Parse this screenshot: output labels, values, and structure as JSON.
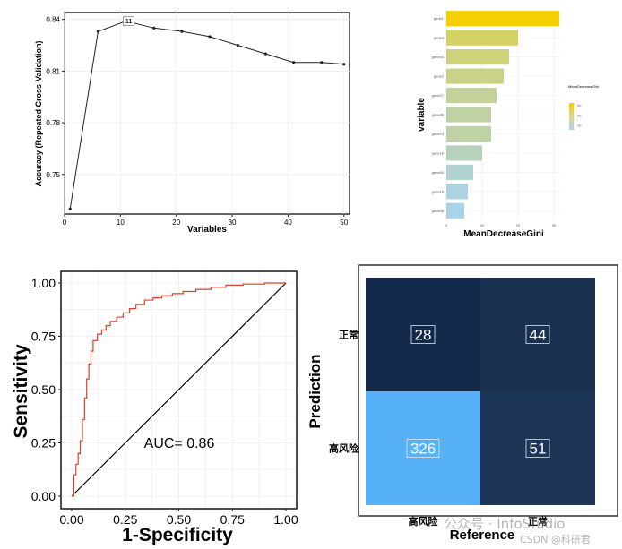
{
  "chart_data": [
    {
      "type": "line",
      "xlabel": "Variables",
      "ylabel": "Accuracy (Repeated Cross-Validation)",
      "xlim": [
        0,
        51
      ],
      "ylim": [
        0.727,
        0.844
      ],
      "xticks": [
        "0",
        "10",
        "20",
        "30",
        "40",
        "50"
      ],
      "yticks": [
        "0.75",
        "0.78",
        "0.81",
        "0.84"
      ],
      "x": [
        1,
        6,
        11,
        16,
        21,
        26,
        31,
        36,
        41,
        46,
        50
      ],
      "y": [
        0.73,
        0.833,
        0.839,
        0.835,
        0.833,
        0.83,
        0.825,
        0.82,
        0.815,
        0.815,
        0.814
      ],
      "best_label": "11",
      "grid": true
    },
    {
      "type": "bar",
      "orientation": "horizontal",
      "xlabel": "MeanDecreaseGini",
      "ylabel": "variable",
      "categories": [
        "gene1",
        "gene4",
        "gene44",
        "gene2",
        "gene27",
        "gene46",
        "gene13",
        "gene16",
        "gene40",
        "gene15",
        "gene45"
      ],
      "values": [
        31.5,
        20,
        17.5,
        16,
        14,
        12.5,
        12.5,
        10,
        7.5,
        6,
        5
      ],
      "xticks": [
        "0",
        "10",
        "20",
        "30"
      ],
      "xlim": [
        0,
        32
      ],
      "legend_title": "MeanDecreaseGini",
      "legend_ticks": [
        "30",
        "20",
        "10"
      ],
      "legend_position": "right",
      "colors": {
        "high": "#f5d000",
        "low": "#a9d3e8"
      }
    },
    {
      "type": "line",
      "xlabel": "1-Specificity",
      "ylabel": "Sensitivity",
      "xlim": [
        0,
        1
      ],
      "ylim": [
        0,
        1
      ],
      "xticks": [
        "0.00",
        "0.25",
        "0.50",
        "0.75",
        "1.00"
      ],
      "yticks": [
        "0.00",
        "0.25",
        "0.50",
        "0.75",
        "1.00"
      ],
      "annotation": "AUC= 0.86",
      "roc_x": [
        0,
        0.01,
        0.01,
        0.02,
        0.02,
        0.03,
        0.03,
        0.04,
        0.04,
        0.05,
        0.05,
        0.06,
        0.06,
        0.07,
        0.07,
        0.08,
        0.08,
        0.09,
        0.09,
        0.1,
        0.1,
        0.12,
        0.12,
        0.14,
        0.14,
        0.16,
        0.16,
        0.18,
        0.18,
        0.21,
        0.21,
        0.24,
        0.24,
        0.27,
        0.27,
        0.3,
        0.3,
        0.34,
        0.34,
        0.38,
        0.38,
        0.42,
        0.42,
        0.47,
        0.47,
        0.52,
        0.52,
        0.58,
        0.58,
        0.65,
        0.65,
        0.72,
        0.72,
        0.8,
        0.8,
        0.9,
        0.9,
        1.0
      ],
      "roc_y": [
        0,
        0,
        0.1,
        0.1,
        0.15,
        0.15,
        0.2,
        0.2,
        0.26,
        0.26,
        0.36,
        0.36,
        0.46,
        0.46,
        0.55,
        0.55,
        0.62,
        0.62,
        0.68,
        0.68,
        0.73,
        0.73,
        0.76,
        0.76,
        0.78,
        0.78,
        0.8,
        0.8,
        0.82,
        0.82,
        0.84,
        0.84,
        0.86,
        0.86,
        0.88,
        0.88,
        0.9,
        0.9,
        0.92,
        0.92,
        0.93,
        0.93,
        0.94,
        0.94,
        0.95,
        0.95,
        0.96,
        0.96,
        0.97,
        0.97,
        0.98,
        0.98,
        0.99,
        0.99,
        0.995,
        0.995,
        1.0,
        1.0
      ],
      "colors": {
        "roc": "#d9402b",
        "diagonal": "#000000"
      },
      "grid": true
    },
    {
      "type": "heatmap",
      "xlabel": "Reference",
      "ylabel": "Prediction",
      "x_categories": [
        "高风险",
        "正常"
      ],
      "y_categories": [
        "正常",
        "高风险"
      ],
      "cells": [
        {
          "reference": "高风险",
          "prediction": "正常",
          "value": 28,
          "color": "#13294b"
        },
        {
          "reference": "正常",
          "prediction": "正常",
          "value": 44,
          "color": "#1a3150"
        },
        {
          "reference": "高风险",
          "prediction": "高风险",
          "value": 326,
          "color": "#56b1f7"
        },
        {
          "reference": "正常",
          "prediction": "高风险",
          "value": 51,
          "color": "#1d3557"
        }
      ]
    }
  ],
  "watermark": {
    "brand": "公众号 · InfoStudio",
    "source": "CSDN @科研君"
  }
}
